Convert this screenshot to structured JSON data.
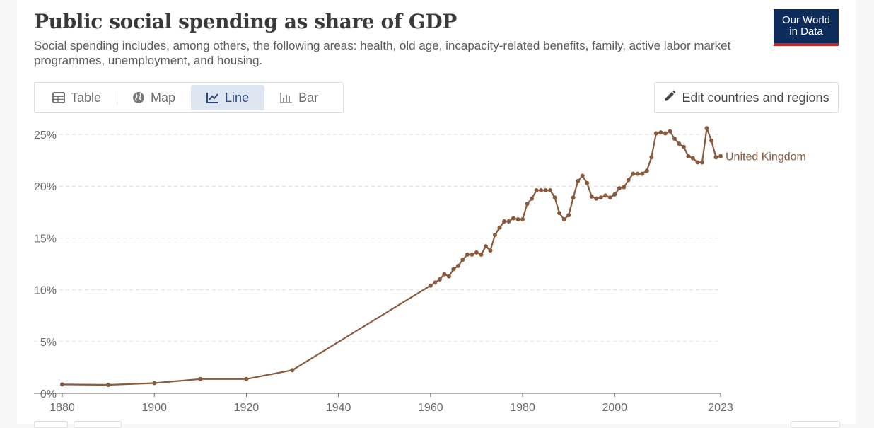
{
  "header": {
    "title": "Public social spending as share of GDP",
    "subtitle": "Social spending includes, among others, the following areas: health, old age, incapacity-related benefits, family, active labor market programmes, unemployment, and housing.",
    "logo_line1": "Our World",
    "logo_line2": "in Data"
  },
  "tabs": [
    {
      "label": "Table",
      "icon": "table-icon",
      "active": false
    },
    {
      "label": "Map",
      "icon": "globe-icon",
      "active": false
    },
    {
      "label": "Line",
      "icon": "line-chart-icon",
      "active": true
    },
    {
      "label": "Bar",
      "icon": "bar-chart-icon",
      "active": false
    }
  ],
  "edit_button": {
    "label": "Edit countries and regions",
    "icon": "pencil-icon"
  },
  "colors": {
    "series": "#8b5a3c",
    "grid": "#dddddd",
    "tab_active_bg": "#dde6f0",
    "logo_bg": "#0d2c5b",
    "logo_accent": "#ce261e"
  },
  "chart_data": {
    "type": "line",
    "title": "Public social spending as share of GDP",
    "xlabel": "",
    "ylabel": "",
    "xlim": [
      1880,
      2023
    ],
    "ylim": [
      0,
      25
    ],
    "x_ticks": [
      "1880",
      "1900",
      "1920",
      "1940",
      "1960",
      "1980",
      "2000",
      "2023"
    ],
    "y_ticks": [
      "0%",
      "5%",
      "10%",
      "15%",
      "20%",
      "25%"
    ],
    "grid": "horizontal-dashed",
    "series": [
      {
        "name": "United Kingdom",
        "x": [
          1880,
          1890,
          1900,
          1910,
          1920,
          1930,
          1960,
          1961,
          1962,
          1963,
          1964,
          1965,
          1966,
          1967,
          1968,
          1969,
          1970,
          1971,
          1972,
          1973,
          1974,
          1975,
          1976,
          1977,
          1978,
          1979,
          1980,
          1981,
          1982,
          1983,
          1984,
          1985,
          1986,
          1987,
          1988,
          1989,
          1990,
          1991,
          1992,
          1993,
          1994,
          1995,
          1996,
          1997,
          1998,
          1999,
          2000,
          2001,
          2002,
          2003,
          2004,
          2005,
          2006,
          2007,
          2008,
          2009,
          2010,
          2011,
          2012,
          2013,
          2014,
          2015,
          2016,
          2017,
          2018,
          2019,
          2020,
          2021,
          2022,
          2023
        ],
        "y": [
          0.86,
          0.82,
          0.99,
          1.38,
          1.38,
          2.24,
          10.4,
          10.7,
          11.0,
          11.5,
          11.3,
          12.0,
          12.3,
          12.9,
          13.4,
          13.4,
          13.6,
          13.4,
          14.2,
          13.8,
          15.3,
          16.0,
          16.6,
          16.6,
          16.9,
          16.8,
          16.8,
          18.3,
          18.8,
          19.6,
          19.6,
          19.6,
          19.6,
          18.9,
          17.4,
          16.8,
          17.2,
          18.9,
          20.5,
          21.0,
          20.3,
          19.0,
          18.8,
          18.9,
          19.1,
          18.9,
          19.2,
          19.8,
          19.9,
          20.6,
          21.2,
          21.2,
          21.2,
          21.5,
          22.8,
          25.1,
          25.2,
          25.1,
          25.3,
          24.6,
          24.1,
          23.8,
          22.9,
          22.7,
          22.3,
          22.3,
          25.6,
          24.4,
          22.8,
          22.9
        ]
      }
    ]
  }
}
